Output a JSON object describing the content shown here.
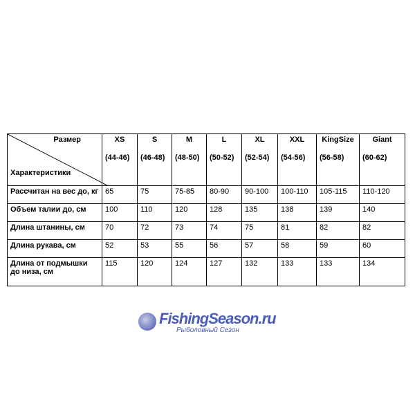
{
  "table": {
    "corner_top": "Размер",
    "corner_bottom": "Характеристики",
    "sizes": [
      {
        "label": "XS",
        "range": "(44-46)"
      },
      {
        "label": "S",
        "range": "(46-48)"
      },
      {
        "label": "M",
        "range": "(48-50)"
      },
      {
        "label": "L",
        "range": "(50-52)"
      },
      {
        "label": "XL",
        "range": "(52-54)"
      },
      {
        "label": "XXL",
        "range": "(54-56)"
      },
      {
        "label": "KingSize",
        "range": "(56-58)"
      },
      {
        "label": "Giant",
        "range": "(60-62)"
      }
    ],
    "rows": [
      {
        "label": "Рассчитан на вес до, кг",
        "values": [
          "65",
          "75",
          "75-85",
          "80-90",
          "90-100",
          "100-110",
          "105-115",
          "110-120"
        ]
      },
      {
        "label": "Объем талии до, см",
        "values": [
          "100",
          "110",
          "120",
          "128",
          "135",
          "138",
          "139",
          "140"
        ]
      },
      {
        "label": "Длина штанины, см",
        "values": [
          "70",
          "72",
          "73",
          "74",
          "75",
          "81",
          "82",
          "82"
        ]
      },
      {
        "label": "Длина рукава, см",
        "values": [
          "52",
          "53",
          "55",
          "56",
          "57",
          "58",
          "59",
          "60"
        ]
      },
      {
        "label": "Длина от подмышки до низа, см",
        "values": [
          "115",
          "120",
          "124",
          "127",
          "132",
          "133",
          "133",
          "134"
        ]
      }
    ]
  },
  "watermark": {
    "title": "FishingSeason.ru",
    "subtitle": "Рыболовный Сезон"
  }
}
